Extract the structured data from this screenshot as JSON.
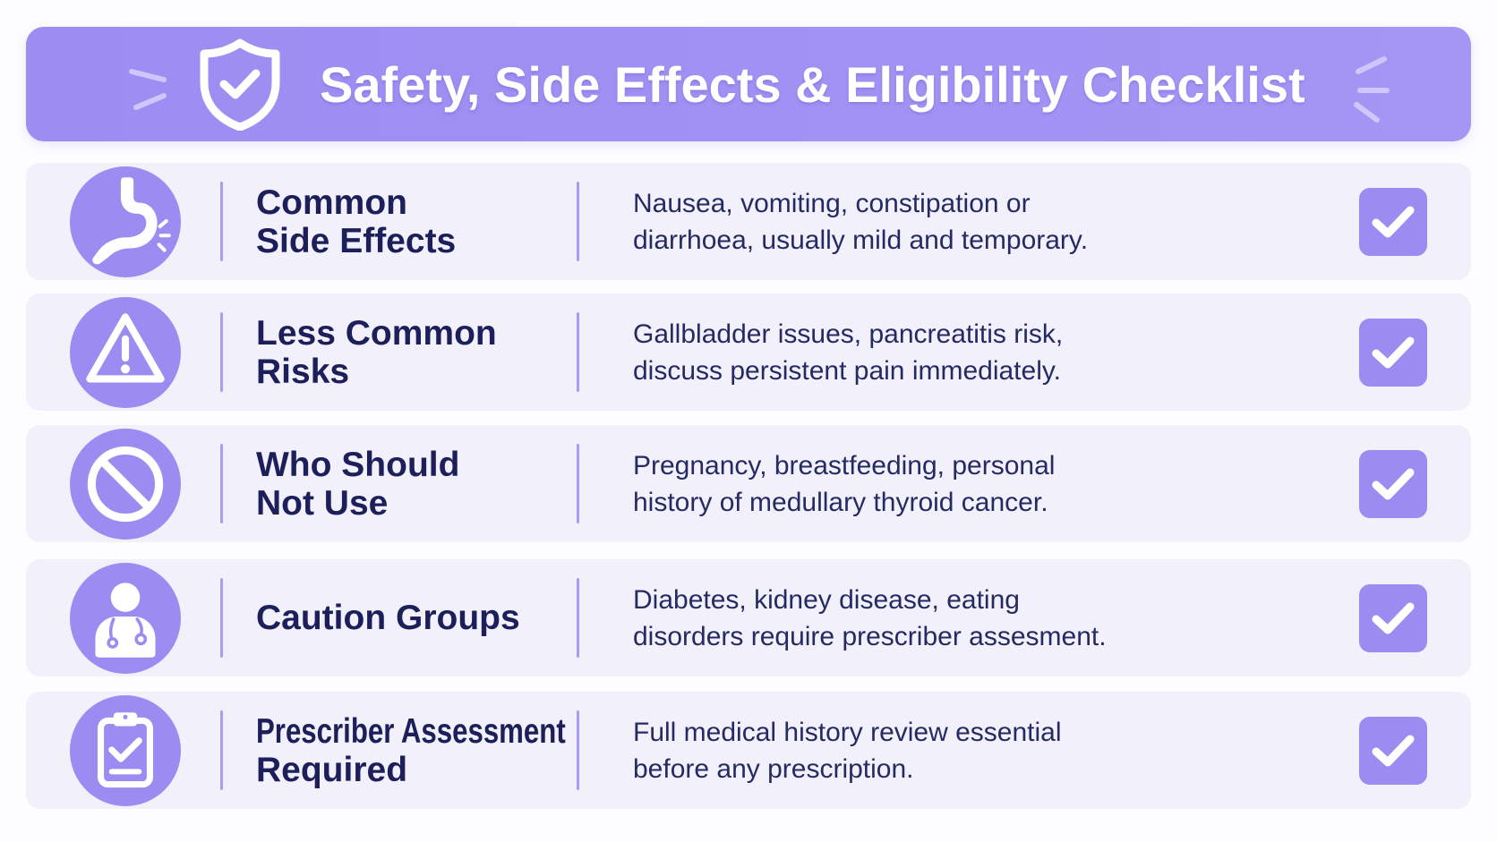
{
  "colors": {
    "header_bg": "#9d8cf2",
    "accent": "#9c8bf1",
    "row_bg": "#f1f0fb",
    "label_text": "#1c1f5a",
    "body_text": "#262a63",
    "title_text": "#ffffff"
  },
  "header": {
    "icon": "shield-check-icon",
    "title": "Safety, Side Effects & Eligibility Checklist"
  },
  "rows": [
    {
      "icon": "stomach-icon",
      "label_lines": [
        "Common",
        "Side Effects"
      ],
      "description_lines": [
        "Nausea, vomiting, constipation or",
        "diarrhoea, usually mild and temporary."
      ],
      "checked": true
    },
    {
      "icon": "warning-icon",
      "label_lines": [
        "Less Common",
        "Risks"
      ],
      "description_lines": [
        "Gallbladder issues, pancreatitis risk,",
        "discuss persistent pain immediately."
      ],
      "checked": true
    },
    {
      "icon": "prohibited-icon",
      "label_lines": [
        "Who Should",
        "Not Use"
      ],
      "description_lines": [
        "Pregnancy, breastfeeding, personal",
        "history of medullary thyroid cancer."
      ],
      "checked": true
    },
    {
      "icon": "doctor-icon",
      "label_lines": [
        "Caution Groups"
      ],
      "description_lines": [
        "Diabetes, kidney disease, eating",
        "disorders require prescriber assesment."
      ],
      "checked": true
    },
    {
      "icon": "clipboard-check-icon",
      "label_lines": [
        "Prescriber Assessment",
        "Required"
      ],
      "description_lines": [
        "Full medical history review essential",
        "before any prescription."
      ],
      "checked": true
    }
  ]
}
